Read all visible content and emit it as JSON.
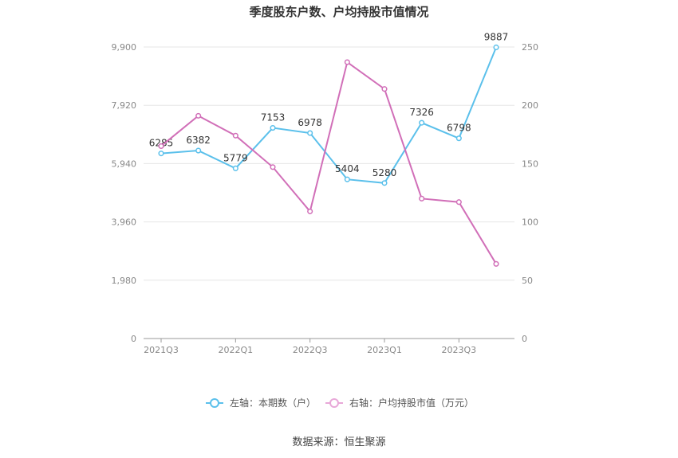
{
  "chart_data": {
    "type": "line",
    "title": "季度股东户数、户均持股市值情况",
    "categories": [
      "2021Q3",
      "2021Q4",
      "2022Q1",
      "2022Q2",
      "2022Q3",
      "2022Q4",
      "2023Q1",
      "2023Q2",
      "2023Q3",
      "2023Q4"
    ],
    "x_tick_labels": [
      "2021Q3",
      "2022Q1",
      "2022Q3",
      "2023Q1",
      "2023Q3"
    ],
    "y_left": {
      "ticks": [
        "0",
        "1,980",
        "3,960",
        "5,940",
        "7,920",
        "9,900"
      ],
      "ylim": [
        0,
        9900
      ]
    },
    "y_right": {
      "ticks": [
        "0",
        "50",
        "100",
        "150",
        "200",
        "250"
      ],
      "ylim": [
        0,
        250
      ]
    },
    "series": [
      {
        "name": "左轴：本期数（户）",
        "axis": "left",
        "color": "#5bc0eb",
        "values": [
          6285,
          6382,
          5779,
          7153,
          6978,
          5404,
          5280,
          7326,
          6798,
          9887
        ],
        "labels": [
          "6285",
          "6382",
          "5779",
          "7153",
          "6978",
          "5404",
          "5280",
          "7326",
          "6798",
          "9887"
        ]
      },
      {
        "name": "右轴：户均持股市值（万元）",
        "axis": "right",
        "color": "#d16fb8",
        "values": [
          165,
          191,
          174,
          147,
          109,
          237,
          214,
          120,
          117,
          64
        ]
      }
    ],
    "legend_position": "bottom"
  },
  "source": "数据来源：恒生聚源"
}
